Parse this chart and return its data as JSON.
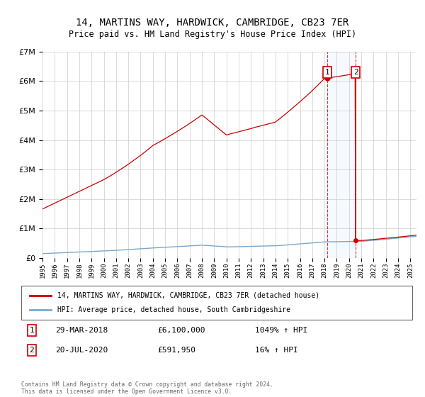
{
  "title": "14, MARTINS WAY, HARDWICK, CAMBRIDGE, CB23 7ER",
  "subtitle": "Price paid vs. HM Land Registry's House Price Index (HPI)",
  "legend_house": "14, MARTINS WAY, HARDWICK, CAMBRIDGE, CB23 7ER (detached house)",
  "legend_hpi": "HPI: Average price, detached house, South Cambridgeshire",
  "annotation1_label": "1",
  "annotation1_date": "29-MAR-2018",
  "annotation1_price": "£6,100,000",
  "annotation1_hpi": "1049% ↑ HPI",
  "annotation2_label": "2",
  "annotation2_date": "20-JUL-2020",
  "annotation2_price": "£591,950",
  "annotation2_hpi": "16% ↑ HPI",
  "copyright": "Contains HM Land Registry data © Crown copyright and database right 2024.\nThis data is licensed under the Open Government Licence v3.0.",
  "house_color": "#cc0000",
  "hpi_color": "#7ba7cc",
  "sale1_year": 2018.23,
  "sale1_price": 6100000,
  "sale2_year": 2020.55,
  "sale2_price": 591950,
  "ylim_max": 7000000,
  "xlim_min": 1995,
  "xlim_max": 2025.5
}
